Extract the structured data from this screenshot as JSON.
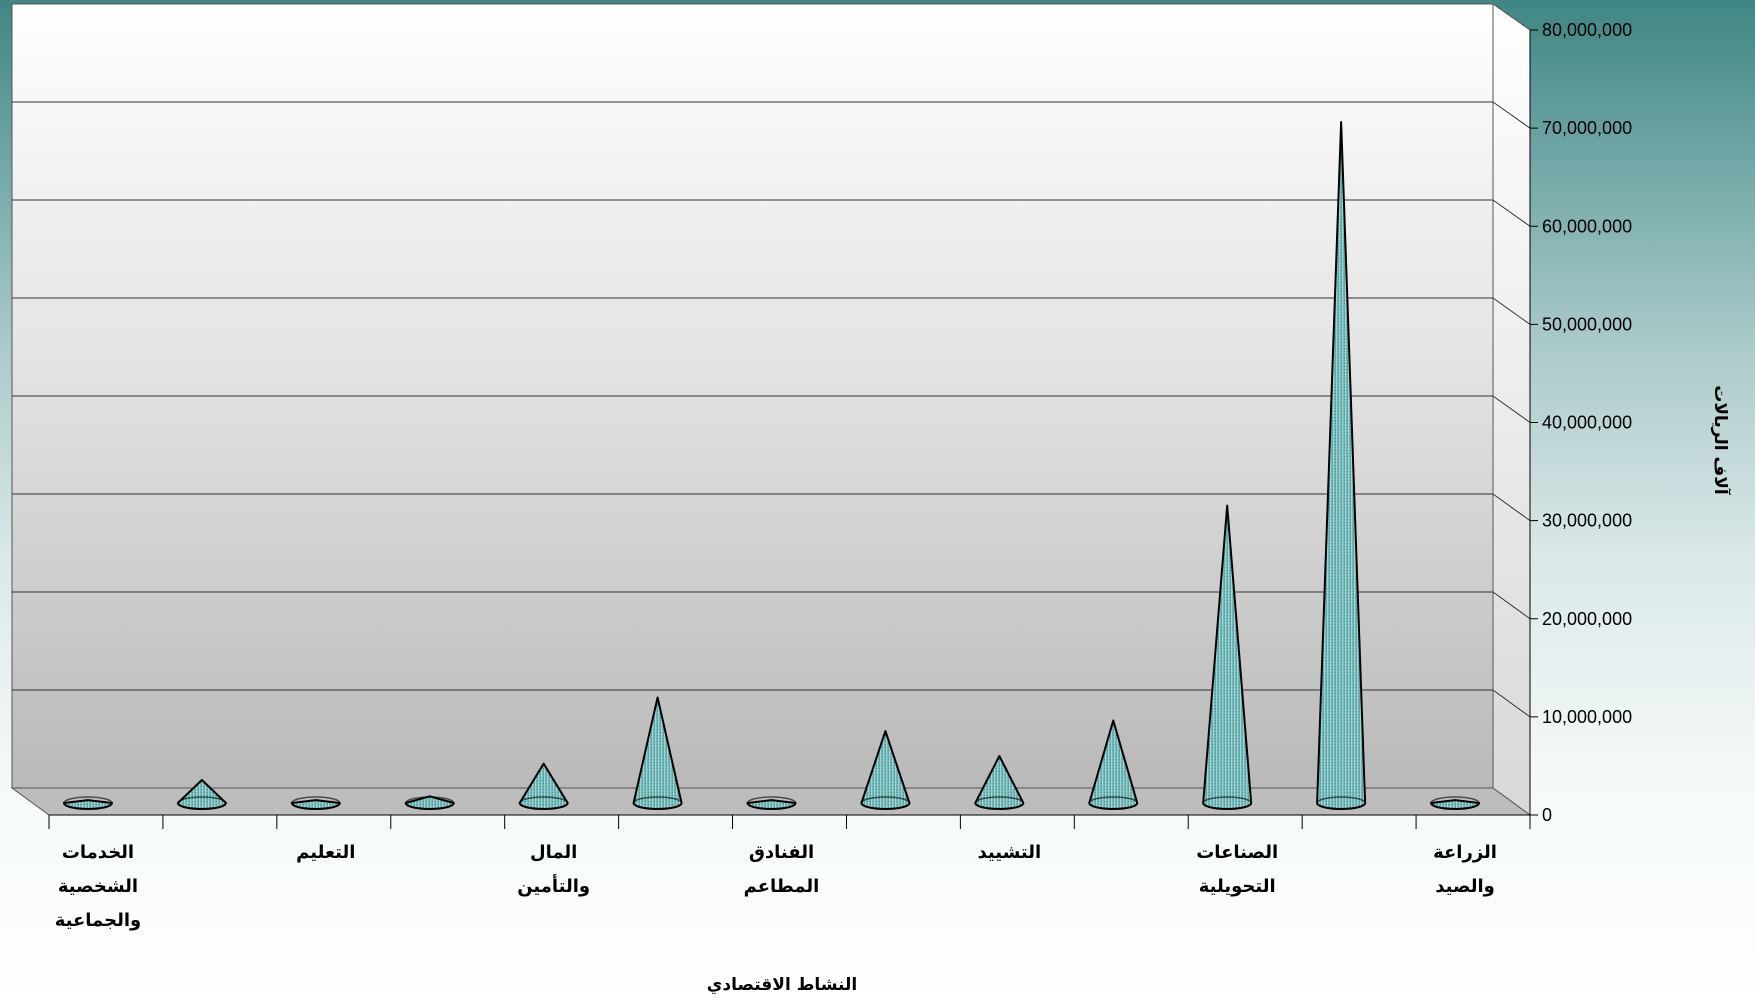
{
  "chart_data": {
    "type": "bar",
    "bar_shape": "cone",
    "style": "3d",
    "xlabel": "النشاط الاقتصادي",
    "ylabel": "آلاف الريالات",
    "ylim": [
      0,
      80000000
    ],
    "yticks": [
      "0",
      "10,000,000",
      "20,000,000",
      "30,000,000",
      "40,000,000",
      "50,000,000",
      "60,000,000",
      "70,000,000",
      "80,000,000"
    ],
    "categories": [
      "الزراعة والصيد",
      "",
      "الصناعات التحويلية",
      "",
      "التشييد",
      "",
      "الفنادق المطاعم",
      "",
      "المال والتأمين",
      "",
      "التعليم",
      "",
      "الخدمات الشخصية والجماعية"
    ],
    "values": [
      300000,
      71000000,
      31000000,
      8600000,
      4900000,
      7500000,
      300000,
      11000000,
      4100000,
      700000,
      300000,
      2400000,
      300000
    ],
    "grid": true,
    "colors": {
      "cone_fill": "#7ec3c3",
      "cone_stroke": "#000000",
      "floor": "#bdbdbd"
    }
  }
}
